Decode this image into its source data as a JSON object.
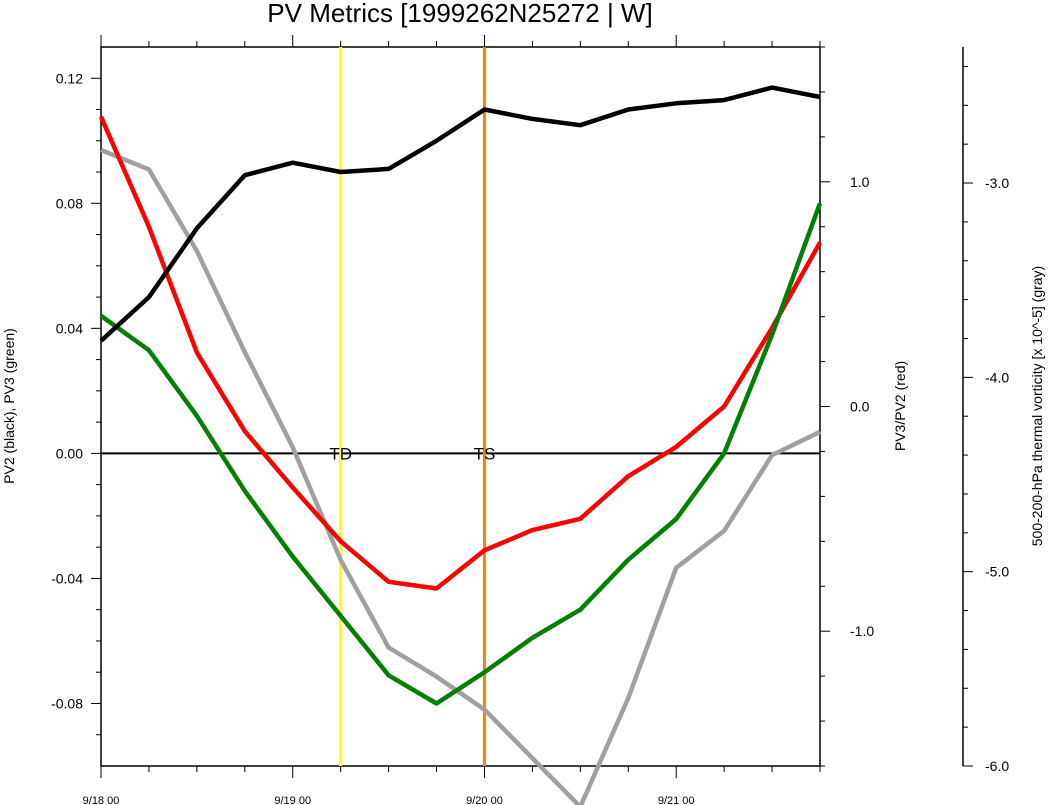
{
  "chart_data": {
    "type": "line",
    "title": "PV Metrics [1999262N25272 | W]",
    "x": [
      "9/18 00",
      "9/18 06",
      "9/18 12",
      "9/18 18",
      "9/19 00",
      "9/19 06",
      "9/19 12",
      "9/19 18",
      "9/20 00",
      "9/20 06",
      "9/20 12",
      "9/20 18",
      "9/21 00",
      "9/21 06",
      "9/21 12",
      "9/21 18"
    ],
    "x_tick_labels": [
      "9/18 00",
      "9/19 00",
      "9/20 00",
      "9/21 00"
    ],
    "axes": {
      "left": {
        "label": "PV2 (black), PV3 (green)",
        "range": [
          -0.1,
          0.13
        ],
        "ticks": [
          -0.08,
          -0.04,
          0.0,
          0.04,
          0.08,
          0.12
        ],
        "tick_labels": [
          "-0.08",
          "-0.04",
          "0.00",
          "0.04",
          "0.08",
          "0.12"
        ]
      },
      "right_inner": {
        "label": "PV3/PV2 (red)",
        "range": [
          -1.6,
          1.6
        ],
        "ticks": [
          -1.0,
          0.0,
          1.0
        ],
        "tick_labels": [
          "-1.0",
          "0.0",
          "1.0"
        ]
      },
      "right_outer": {
        "label": "500-200-hPa thermal vorticity [x 10^-5] (gray)",
        "range": [
          -6.0,
          -2.3
        ],
        "ticks": [
          -6.0,
          -5.0,
          -4.0,
          -3.0
        ],
        "tick_labels": [
          "-6.0",
          "-5.0",
          "-4.0",
          "-3.0"
        ]
      }
    },
    "series": [
      {
        "name": "PV2",
        "axis": "left",
        "color": "#000000",
        "values": [
          0.036,
          0.05,
          0.072,
          0.089,
          0.093,
          0.09,
          0.091,
          0.1,
          0.11,
          0.107,
          0.105,
          0.11,
          0.112,
          0.113,
          0.117,
          0.114
        ]
      },
      {
        "name": "PV3",
        "axis": "left",
        "color": "#008000",
        "values": [
          0.044,
          0.033,
          0.012,
          -0.012,
          -0.033,
          -0.052,
          -0.071,
          -0.08,
          -0.07,
          -0.059,
          -0.05,
          -0.034,
          -0.021,
          0.0,
          0.038,
          0.08
        ]
      },
      {
        "name": "PV3/PV2",
        "axis": "right_inner",
        "color": "#ff0000",
        "values": [
          1.29,
          0.8,
          0.24,
          -0.11,
          -0.36,
          -0.6,
          -0.78,
          -0.81,
          -0.64,
          -0.55,
          -0.5,
          -0.31,
          -0.18,
          0.0,
          0.35,
          0.73
        ]
      },
      {
        "name": "500-200-hPa thermal vorticity",
        "axis": "right_outer",
        "color": "#a0a0a0",
        "values": [
          -2.83,
          -2.93,
          -3.35,
          -3.87,
          -4.36,
          -4.94,
          -5.39,
          -5.54,
          -5.71,
          -5.96,
          -6.21,
          -5.65,
          -4.98,
          -4.79,
          -4.4,
          -4.28
        ]
      }
    ],
    "vertical_markers": [
      {
        "x": "9/19 06",
        "label": "TD",
        "color": "#ffff00"
      },
      {
        "x": "9/20 00",
        "label": "TS",
        "color": "#ff8000"
      }
    ],
    "zero_line": true,
    "grid": false
  }
}
